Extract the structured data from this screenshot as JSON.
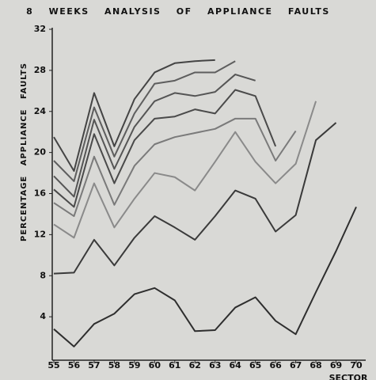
{
  "chart_data": {
    "type": "line",
    "title": "8 WEEKS ANALYSIS OF APPLIANCE FAULTS",
    "y_label": "PERCENTAGE APPLIANCE FAULTS",
    "x_label": "SECTOR",
    "x": [
      55,
      56,
      57,
      58,
      59,
      60,
      61,
      62,
      63,
      64,
      65,
      66,
      67,
      68,
      69,
      70
    ],
    "xlim": [
      55,
      70
    ],
    "xticks": [
      55,
      56,
      57,
      58,
      59,
      60,
      61,
      62,
      63,
      64,
      65,
      66,
      67,
      68,
      69,
      70
    ],
    "ylim": [
      0,
      32
    ],
    "yticks": [
      4,
      8,
      12,
      16,
      20,
      24,
      28,
      32
    ],
    "grid": false,
    "series": [
      {
        "color": "#2e2e2e",
        "values": [
          2.8,
          1.1,
          3.3,
          4.3,
          6.2,
          6.8,
          5.6,
          2.6,
          2.7,
          4.9,
          5.9,
          3.6,
          2.3,
          6.4,
          10.4,
          14.7
        ]
      },
      {
        "color": "#3a3a3a",
        "values": [
          8.2,
          8.3,
          11.5,
          9.0,
          11.7,
          13.8,
          12.7,
          11.5,
          13.8,
          16.3,
          15.5,
          12.3,
          13.9,
          21.2,
          22.9,
          null
        ]
      },
      {
        "color": "#8a8a8a",
        "values": [
          13.0,
          11.7,
          17.0,
          12.7,
          15.5,
          18.0,
          17.6,
          16.3,
          19.1,
          22.0,
          19.1,
          17.0,
          18.9,
          25.0,
          null,
          null
        ]
      },
      {
        "color": "#7a7a7a",
        "values": [
          15.1,
          13.8,
          19.6,
          14.9,
          18.7,
          20.8,
          21.5,
          21.9,
          22.3,
          23.3,
          23.3,
          19.2,
          22.1,
          null,
          null,
          null
        ]
      },
      {
        "color": "#4a4a4a",
        "values": [
          16.4,
          14.7,
          21.8,
          17.0,
          21.2,
          23.3,
          23.5,
          24.2,
          23.8,
          26.1,
          25.5,
          20.6,
          null,
          null,
          null,
          null
        ]
      },
      {
        "color": "#555555",
        "values": [
          17.7,
          15.7,
          23.2,
          18.4,
          22.5,
          25.0,
          25.8,
          25.5,
          25.9,
          27.6,
          27.0,
          null,
          null,
          null,
          null,
          null
        ]
      },
      {
        "color": "#5e5e5e",
        "values": [
          19.2,
          17.2,
          24.4,
          19.6,
          23.8,
          26.7,
          27.0,
          27.8,
          27.8,
          28.9,
          null,
          null,
          null,
          null,
          null,
          null
        ]
      },
      {
        "color": "#444444",
        "values": [
          21.5,
          18.2,
          25.8,
          20.6,
          25.2,
          27.8,
          28.7,
          28.9,
          29.0,
          null,
          null,
          null,
          null,
          null,
          null,
          null
        ]
      }
    ]
  }
}
